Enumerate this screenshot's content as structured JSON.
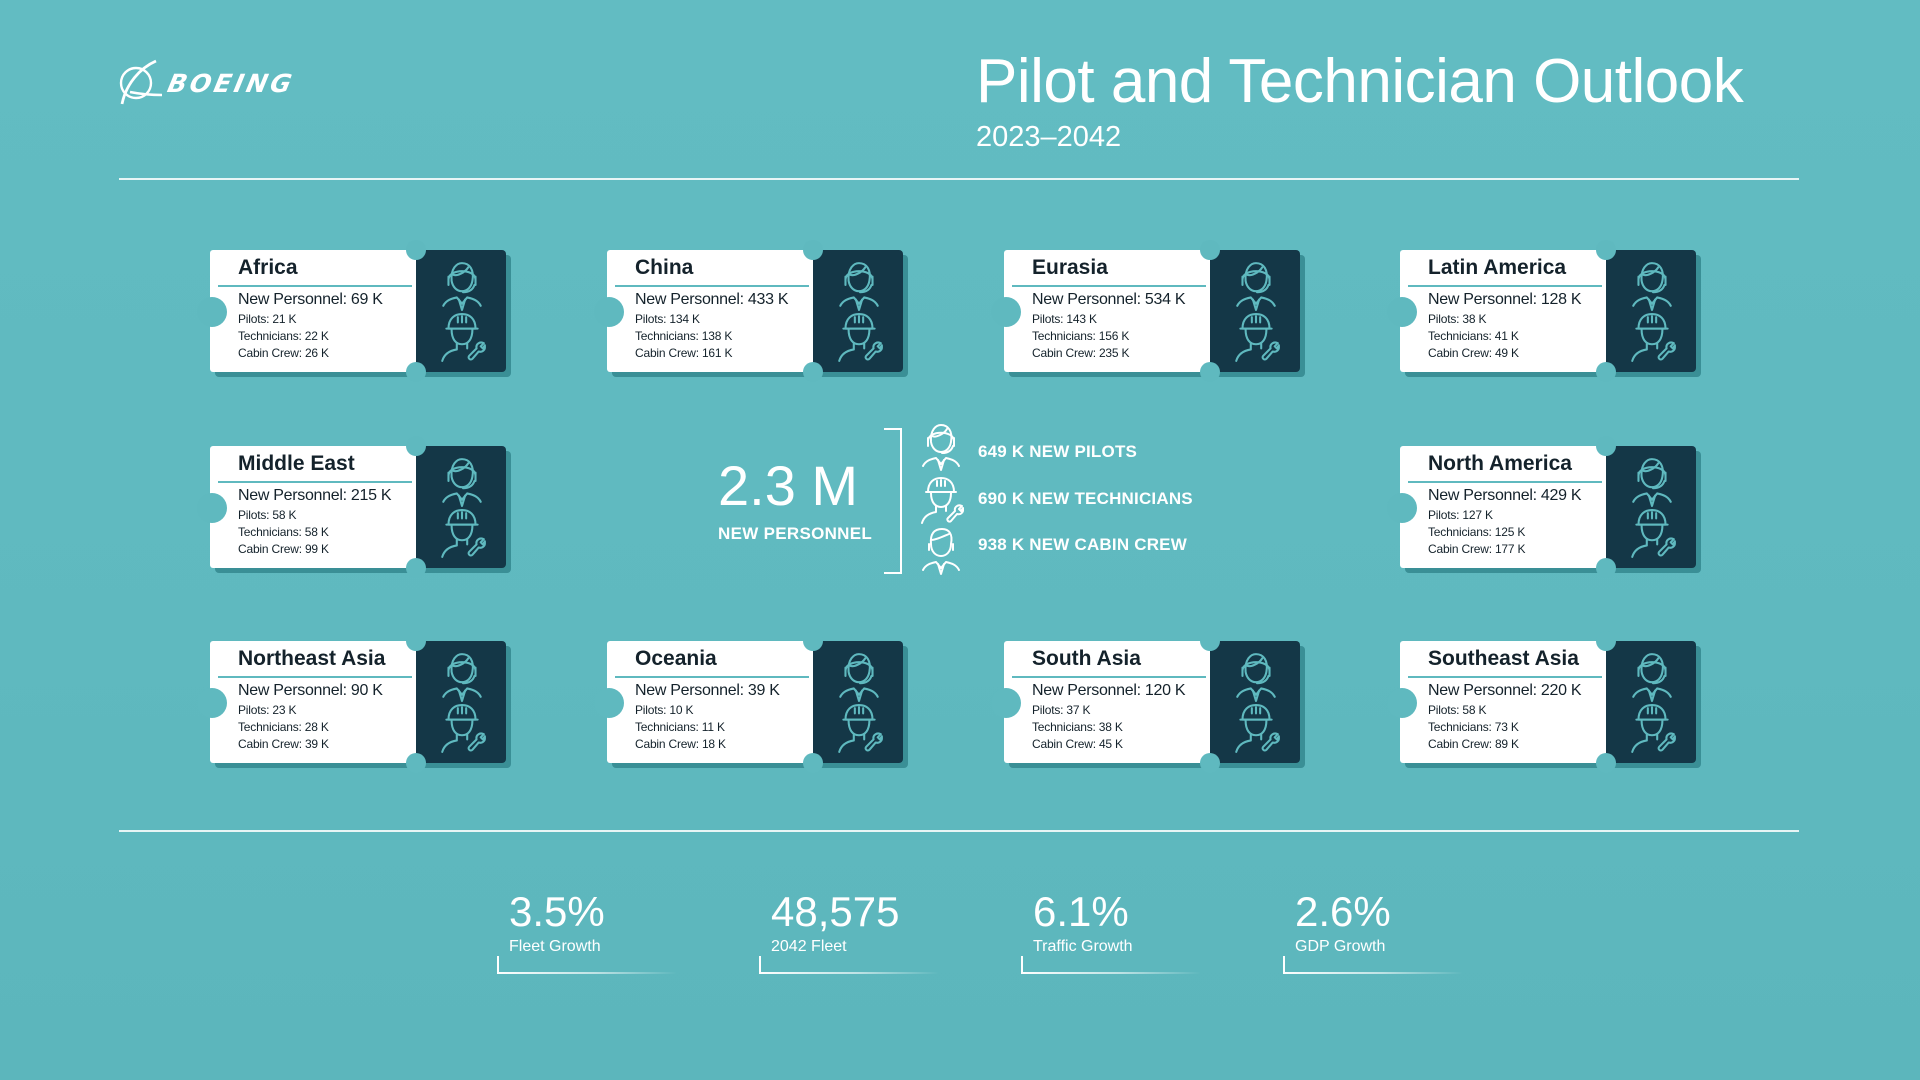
{
  "header": {
    "logo_text": "BOEING",
    "title": "Pilot and Technician Outlook",
    "subtitle": "2023–2042"
  },
  "colors": {
    "background": "#5fb9bf",
    "card_white": "#ffffff",
    "card_dark": "#143747",
    "card_shadow": "#3a8f96",
    "icon_stroke": "#5fb9bf",
    "text_dark": "#14222b"
  },
  "regions": [
    {
      "name": "Africa",
      "new_personnel": "New Personnel: 69 K",
      "pilots": "Pilots: 21 K",
      "technicians": "Technicians: 22 K",
      "cabin_crew": "Cabin Crew: 26 K"
    },
    {
      "name": "China",
      "new_personnel": "New Personnel: 433 K",
      "pilots": "Pilots: 134 K",
      "technicians": "Technicians: 138 K",
      "cabin_crew": "Cabin Crew: 161 K"
    },
    {
      "name": "Eurasia",
      "new_personnel": "New Personnel: 534 K",
      "pilots": "Pilots: 143 K",
      "technicians": "Technicians: 156 K",
      "cabin_crew": "Cabin Crew: 235 K"
    },
    {
      "name": "Latin America",
      "new_personnel": "New Personnel: 128 K",
      "pilots": "Pilots: 38 K",
      "technicians": "Technicians: 41 K",
      "cabin_crew": "Cabin Crew: 49 K"
    },
    {
      "name": "Middle East",
      "new_personnel": "New Personnel: 215 K",
      "pilots": "Pilots: 58 K",
      "technicians": "Technicians: 58 K",
      "cabin_crew": "Cabin Crew: 99 K"
    },
    {
      "name": "North America",
      "new_personnel": "New Personnel: 429 K",
      "pilots": "Pilots: 127 K",
      "technicians": "Technicians: 125 K",
      "cabin_crew": "Cabin Crew: 177 K"
    },
    {
      "name": "Northeast Asia",
      "new_personnel": "New Personnel: 90 K",
      "pilots": "Pilots: 23 K",
      "technicians": "Technicians: 28 K",
      "cabin_crew": "Cabin Crew: 39 K"
    },
    {
      "name": "Oceania",
      "new_personnel": "New Personnel: 39 K",
      "pilots": "Pilots: 10 K",
      "technicians": "Technicians: 11 K",
      "cabin_crew": "Cabin Crew: 18 K"
    },
    {
      "name": "South Asia",
      "new_personnel": "New Personnel: 120 K",
      "pilots": "Pilots: 37 K",
      "technicians": "Technicians: 38 K",
      "cabin_crew": "Cabin Crew: 45 K"
    },
    {
      "name": "Southeast Asia",
      "new_personnel": "New Personnel: 220 K",
      "pilots": "Pilots: 58 K",
      "technicians": "Technicians: 73 K",
      "cabin_crew": "Cabin Crew: 89 K"
    }
  ],
  "summary": {
    "total": "2.3 M",
    "total_label": "NEW PERSONNEL",
    "items": [
      {
        "icon": "pilot-icon",
        "text": "649 K NEW PILOTS"
      },
      {
        "icon": "technician-icon",
        "text": "690 K NEW TECHNICIANS"
      },
      {
        "icon": "cabin-crew-icon",
        "text": "938 K NEW CABIN CREW"
      }
    ]
  },
  "metrics": [
    {
      "value": "3.5%",
      "label": "Fleet Growth"
    },
    {
      "value": "48,575",
      "label": "2042 Fleet"
    },
    {
      "value": "6.1%",
      "label": "Traffic Growth"
    },
    {
      "value": "2.6%",
      "label": "GDP Growth"
    }
  ]
}
